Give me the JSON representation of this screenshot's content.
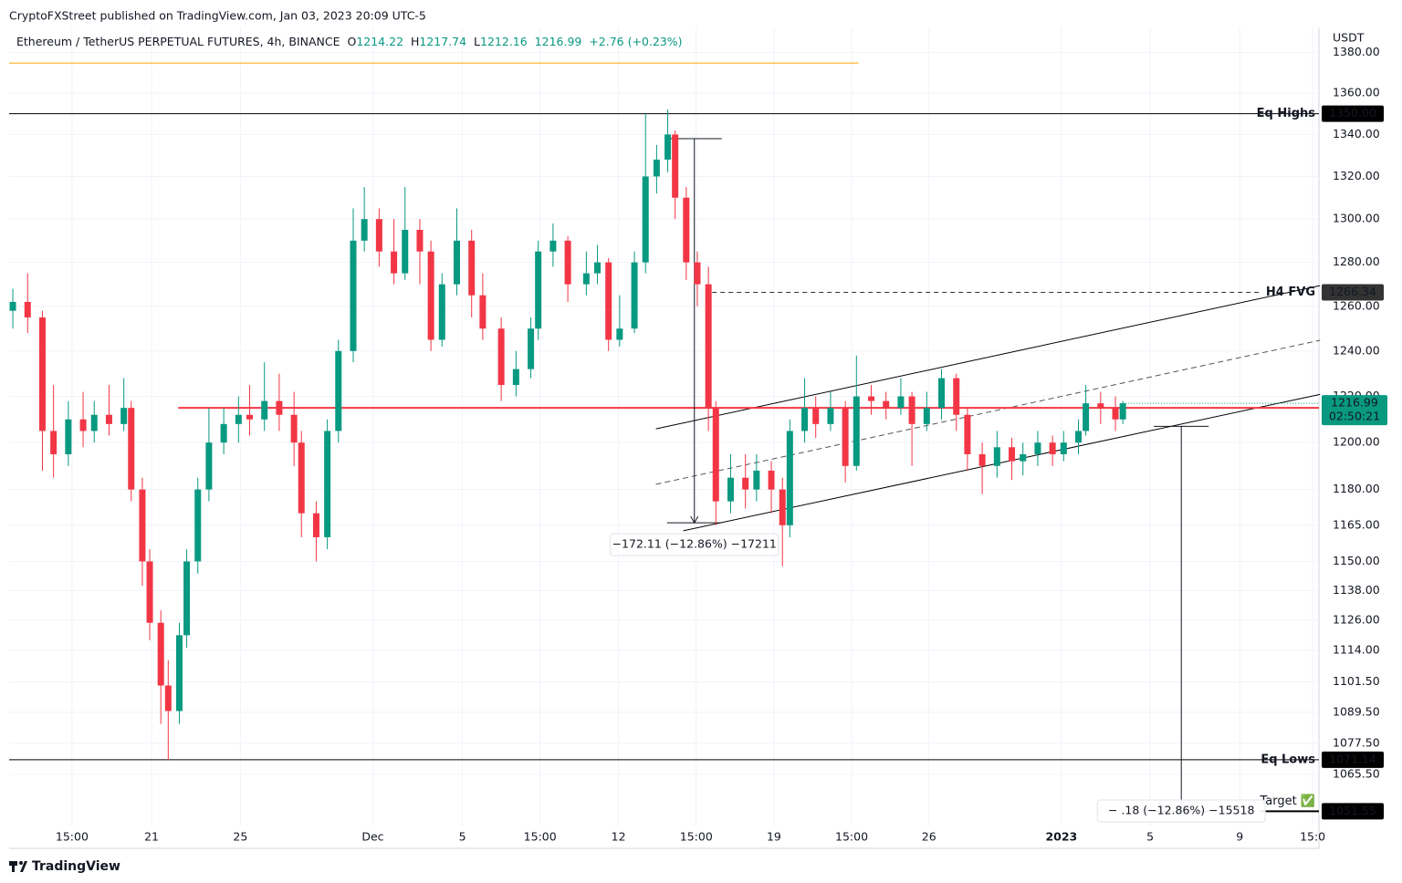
{
  "header": {
    "publisher": "CryptoFXStreet published on TradingView.com, Jan 03, 2023 20:09 UTC-5"
  },
  "footer": {
    "brand": "TradingView"
  },
  "chart_data": {
    "type": "candlestick",
    "title": "Ethereum / TetherUS PERPETUAL FUTURES, 4h, BINANCE",
    "legend": [
      {
        "label": "O",
        "value": 1214.22
      },
      {
        "label": "H",
        "value": 1217.74
      },
      {
        "label": "L",
        "value": 1212.16
      },
      {
        "value": 1216.99
      }
    ],
    "change": "+2.76 (+0.23%)",
    "y_unit": "USDT",
    "log_scale": true,
    "grid": true,
    "up_color": "#089981",
    "down_color": "#f23645",
    "xlim": [
      0,
      354
    ],
    "ylim": [
      1046.2,
      1392.4
    ],
    "xticks": [
      {
        "value": 17,
        "label": "15:00"
      },
      {
        "value": 38.5,
        "label": "21"
      },
      {
        "value": 62.5,
        "label": "25"
      },
      {
        "value": 98.3,
        "label": "Dec"
      },
      {
        "value": 122.5,
        "label": "5"
      },
      {
        "value": 143.5,
        "label": "15:00"
      },
      {
        "value": 164.7,
        "label": "12"
      },
      {
        "value": 185.7,
        "label": "15:00"
      },
      {
        "value": 206.7,
        "label": "19"
      },
      {
        "value": 227.7,
        "label": "15:00"
      },
      {
        "value": 248.6,
        "label": "26"
      },
      {
        "value": 284.4,
        "label": "2023",
        "bold": true
      },
      {
        "value": 308.4,
        "label": "5"
      },
      {
        "value": 332.6,
        "label": "9"
      },
      {
        "value": 352.3,
        "label": "15:0"
      }
    ],
    "yticks": [
      {
        "value": 1380,
        "label": "1380.00"
      },
      {
        "value": 1360,
        "label": "1360.00"
      },
      {
        "value": 1340,
        "label": "1340.00"
      },
      {
        "value": 1320,
        "label": "1320.00"
      },
      {
        "value": 1300,
        "label": "1300.00"
      },
      {
        "value": 1280,
        "label": "1280.00"
      },
      {
        "value": 1260,
        "label": "1260.00"
      },
      {
        "value": 1240,
        "label": "1240.00"
      },
      {
        "value": 1220,
        "label": "1220.00"
      },
      {
        "value": 1200,
        "label": "1200.00"
      },
      {
        "value": 1180,
        "label": "1180.00"
      },
      {
        "value": 1165,
        "label": "1165.00"
      },
      {
        "value": 1150,
        "label": "1150.00"
      },
      {
        "value": 1138,
        "label": "1138.00"
      },
      {
        "value": 1126,
        "label": "1126.00"
      },
      {
        "value": 1114,
        "label": "1114.00"
      },
      {
        "value": 1101.5,
        "label": "1101.50"
      },
      {
        "value": 1089.5,
        "label": "1089.50"
      },
      {
        "value": 1077.5,
        "label": "1077.50"
      },
      {
        "value": 1065.5,
        "label": "1065.50"
      }
    ],
    "x": [
      1,
      5,
      9,
      12,
      16,
      20,
      23,
      27,
      31,
      33,
      36,
      38,
      41,
      43,
      46,
      48,
      51,
      54,
      58,
      62,
      65,
      69,
      73,
      77,
      79,
      83,
      86,
      89,
      93,
      96,
      100,
      104,
      107,
      111,
      114,
      117,
      121,
      125,
      128,
      133,
      137,
      141,
      143,
      147,
      151,
      156,
      159,
      162,
      165,
      169,
      172,
      175,
      178,
      180,
      183,
      186,
      189,
      191,
      195,
      199,
      202,
      206,
      209,
      211,
      215,
      218,
      222,
      226,
      229,
      233,
      237,
      241,
      244,
      248,
      252,
      256,
      259,
      263,
      267,
      271,
      274,
      278,
      282,
      285,
      289,
      291,
      295,
      299,
      301
    ],
    "open": [
      1258,
      1262,
      1255,
      1205,
      1195,
      1210,
      1205,
      1212,
      1208,
      1215,
      1180,
      1150,
      1125,
      1100,
      1090,
      1120,
      1150,
      1180,
      1200,
      1208,
      1212,
      1210,
      1218,
      1212,
      1200,
      1170,
      1160,
      1205,
      1240,
      1290,
      1300,
      1285,
      1275,
      1295,
      1285,
      1245,
      1270,
      1290,
      1265,
      1250,
      1225,
      1232,
      1250,
      1285,
      1290,
      1270,
      1275,
      1280,
      1245,
      1250,
      1280,
      1320,
      1328,
      1340,
      1310,
      1280,
      1270,
      1215,
      1175,
      1185,
      1180,
      1188,
      1180,
      1165,
      1205,
      1215,
      1208,
      1215,
      1190,
      1220,
      1218,
      1215,
      1220,
      1208,
      1215,
      1228,
      1212,
      1195,
      1190,
      1198,
      1192,
      1195,
      1200,
      1195,
      1200,
      1205,
      1217,
      1215,
      1210
    ],
    "high": [
      1268,
      1275,
      1258,
      1225,
      1218,
      1222,
      1218,
      1225,
      1228,
      1218,
      1185,
      1155,
      1130,
      1110,
      1125,
      1155,
      1185,
      1215,
      1215,
      1220,
      1225,
      1235,
      1230,
      1222,
      1205,
      1175,
      1210,
      1245,
      1305,
      1315,
      1305,
      1300,
      1315,
      1300,
      1290,
      1275,
      1305,
      1295,
      1275,
      1255,
      1240,
      1255,
      1290,
      1298,
      1292,
      1285,
      1288,
      1282,
      1265,
      1285,
      1350,
      1335,
      1352,
      1342,
      1315,
      1285,
      1278,
      1218,
      1195,
      1195,
      1195,
      1192,
      1185,
      1210,
      1228,
      1220,
      1222,
      1218,
      1238,
      1225,
      1222,
      1228,
      1222,
      1222,
      1232,
      1230,
      1215,
      1200,
      1205,
      1202,
      1200,
      1205,
      1203,
      1205,
      1210,
      1225,
      1222,
      1220,
      1218
    ],
    "low": [
      1250,
      1248,
      1188,
      1185,
      1190,
      1198,
      1200,
      1203,
      1205,
      1175,
      1140,
      1118,
      1085,
      1071,
      1085,
      1115,
      1145,
      1175,
      1195,
      1200,
      1203,
      1205,
      1205,
      1190,
      1160,
      1150,
      1155,
      1200,
      1235,
      1285,
      1278,
      1270,
      1272,
      1270,
      1240,
      1242,
      1265,
      1255,
      1245,
      1218,
      1220,
      1228,
      1245,
      1278,
      1262,
      1265,
      1270,
      1240,
      1242,
      1248,
      1275,
      1312,
      1322,
      1300,
      1272,
      1260,
      1205,
      1165,
      1170,
      1172,
      1175,
      1170,
      1148,
      1160,
      1200,
      1202,
      1205,
      1183,
      1188,
      1212,
      1210,
      1212,
      1190,
      1205,
      1210,
      1205,
      1188,
      1178,
      1185,
      1184,
      1186,
      1190,
      1190,
      1192,
      1195,
      1203,
      1208,
      1205,
      1208
    ],
    "close": [
      1262,
      1255,
      1205,
      1195,
      1210,
      1205,
      1212,
      1208,
      1215,
      1180,
      1150,
      1125,
      1100,
      1090,
      1120,
      1150,
      1180,
      1200,
      1208,
      1212,
      1210,
      1218,
      1212,
      1200,
      1170,
      1160,
      1205,
      1240,
      1290,
      1300,
      1285,
      1275,
      1295,
      1285,
      1245,
      1270,
      1290,
      1265,
      1250,
      1225,
      1232,
      1250,
      1285,
      1290,
      1270,
      1275,
      1280,
      1245,
      1250,
      1280,
      1320,
      1328,
      1340,
      1310,
      1280,
      1270,
      1215,
      1175,
      1185,
      1180,
      1188,
      1180,
      1165,
      1205,
      1215,
      1208,
      1215,
      1190,
      1220,
      1218,
      1215,
      1220,
      1208,
      1215,
      1228,
      1212,
      1195,
      1190,
      1198,
      1192,
      1195,
      1200,
      1195,
      1200,
      1205,
      1217,
      1215,
      1210,
      1217
    ],
    "levels": [
      {
        "name": "Eq Highs",
        "value": 1350,
        "value_label": "1350.00",
        "x": [
          0,
          354
        ],
        "color": "#000000",
        "name_color": "#f23645"
      },
      {
        "name": "H4 FVG",
        "value": 1266.34,
        "x": [
          190,
          338
        ],
        "color": "#333333",
        "style": "dashed",
        "name_color": "#4caf50"
      },
      {
        "value": 1215,
        "x": [
          45.7,
          354
        ],
        "color": "#f23645",
        "style": "thick"
      },
      {
        "name": "Eq Lows",
        "value": 1071.14,
        "x": [
          0,
          354
        ],
        "color": "#000000",
        "name_color": "#f23645"
      },
      {
        "name": "Target ✅",
        "value": 1051.55,
        "x": [
          338,
          354
        ],
        "color": "#000000",
        "style": "thick",
        "name_color": "#000000",
        "label_position": "above"
      }
    ],
    "trend_lines": [
      {
        "x": [
          174.8,
          354.3
        ],
        "y": [
          1205.9,
          1269.4
        ],
        "color": "#000000"
      },
      {
        "x": [
          182.2,
          354.3
        ],
        "y": [
          1162.7,
          1220.9
        ],
        "color": "#000000"
      },
      {
        "x": [
          174.8,
          354.3
        ],
        "y": [
          1182.2,
          1244.8
        ],
        "color": "#555555",
        "style": "dashed"
      },
      {
        "x": [
          0,
          229.6
        ],
        "y": [
          1374.7,
          1374.7
        ],
        "color": "#f7a600"
      }
    ],
    "measures": [
      {
        "x": 185.2,
        "from": 1338,
        "to": 1166,
        "label": "−172.11 (−12.86%) −17211"
      },
      {
        "x": 316.8,
        "from": 1207,
        "to": 1051.5,
        "label": "− .18 (−12.86%) −15518"
      }
    ],
    "last_price": {
      "value": 1216.99,
      "countdown": "02:50:21",
      "color": "#089981"
    }
  }
}
